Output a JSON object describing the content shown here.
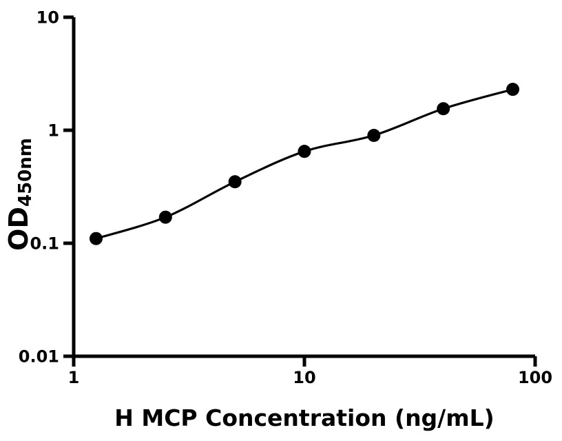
{
  "figure": {
    "background_color": "#ffffff",
    "axis_color": "#000000",
    "marker_color": "#000000",
    "curve_color": "#000000"
  },
  "chart_data": {
    "type": "scatter",
    "subtype": "standard-curve-with-fit-line",
    "scale": "log-log",
    "title": "",
    "xlabel": "H MCP Concentration (ng/mL)",
    "ylabel_main": "OD",
    "ylabel_sub": "450nm",
    "x": [
      1.25,
      2.5,
      5,
      10,
      20,
      40,
      80
    ],
    "y": [
      0.11,
      0.17,
      0.35,
      0.65,
      0.9,
      1.55,
      2.3
    ],
    "xlim": [
      1,
      100
    ],
    "ylim": [
      0.01,
      10
    ],
    "x_tick_values": [
      1,
      10,
      100
    ],
    "x_tick_labels": [
      "1",
      "10",
      "100"
    ],
    "y_tick_values": [
      10,
      1,
      0.1,
      0.01
    ],
    "y_tick_labels": [
      "10",
      "1",
      "0.1",
      "0.01"
    ],
    "grid": false,
    "legend": "none",
    "fit_curve": true
  }
}
